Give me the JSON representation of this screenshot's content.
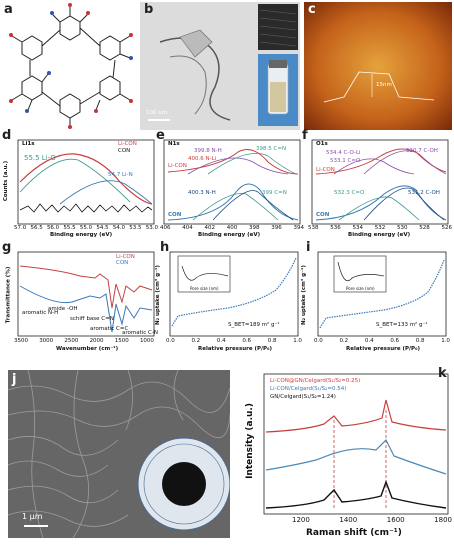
{
  "panels": {
    "a": {
      "letter": "a"
    },
    "b": {
      "letter": "b",
      "scalebar": "100 nm"
    },
    "c": {
      "letter": "c",
      "height_label": "15nm"
    },
    "d": {
      "letter": "d",
      "title": "Li1s",
      "legend": [
        "Li-CON",
        "CON"
      ],
      "peaks": [
        "55.5 Li-O",
        "54.7 Li-N"
      ],
      "xlabel": "Binding energy (eV)",
      "ylabel": "Counts (a.u.)",
      "xticks": [
        "57.0",
        "56.5",
        "56.0",
        "55.5",
        "55.0",
        "54.5",
        "54.0",
        "53.5",
        "53.0"
      ]
    },
    "e": {
      "letter": "e",
      "title": "N1s",
      "peaks": [
        "399.8 N-H",
        "398.5 C=N",
        "400.6 N-Li",
        "400.3 N-H",
        "399 C=N"
      ],
      "series_labels": [
        "Li-CON",
        "CON"
      ],
      "xlabel": "Binding energy (eV)",
      "xticks": [
        "406",
        "404",
        "402",
        "400",
        "398",
        "396",
        "394"
      ]
    },
    "f": {
      "letter": "f",
      "title": "O1s",
      "peaks": [
        "534.4 C-O-Li",
        "530.7 C-OH",
        "533.1 C=O",
        "532.3 C=O",
        "531.2 C-OH"
      ],
      "series_labels": [
        "Li-CON",
        "CON"
      ],
      "xlabel": "Binding energy (eV)",
      "xticks": [
        "538",
        "536",
        "534",
        "532",
        "530",
        "528",
        "526"
      ]
    },
    "g": {
      "letter": "g",
      "legend": [
        "Li-CON",
        "CON"
      ],
      "annotations": [
        "amide -OH",
        "aromatic N-H",
        "schiff base C=N",
        "aromatic C=C",
        "aromatic C-N"
      ],
      "xlabel": "Wavenumber (cm⁻¹)",
      "ylabel": "Transmittance (%)",
      "xticks": [
        "3500",
        "3000",
        "2500",
        "2000",
        "1500",
        "1000"
      ]
    },
    "h": {
      "letter": "h",
      "sbet": "S_BET=189 m² g⁻¹",
      "xlabel": "Relative pressure (P/P₀)",
      "ylabel": "N₂ uptake (cm³ g⁻¹)",
      "xticks": [
        "0.0",
        "0.2",
        "0.4",
        "0.6",
        "0.8",
        "1.0"
      ],
      "inset_xlabel": "Pore size (nm)"
    },
    "i": {
      "letter": "i",
      "sbet": "S_BET=133 m² g⁻¹",
      "xlabel": "Relative pressure (P/P₀)",
      "ylabel": "N₂ uptake (cm³ g⁻¹)",
      "xticks": [
        "0.0",
        "0.2",
        "0.4",
        "0.6",
        "0.8",
        "1.0"
      ],
      "inset_xlabel": "Pore size (nm)"
    },
    "j": {
      "letter": "j",
      "scalebar": "1 μm"
    },
    "k": {
      "letter": "k",
      "legend": [
        "Li-CON@GN/Celgard(S₁/S₂=0.25)",
        "Li-CON/Celgard(S₁/S₂=0.54)",
        "GN/Celgard(S₁/S₂=1.24)"
      ],
      "xlabel": "Raman shift (cm⁻¹)",
      "ylabel": "Intensity (a.u.)",
      "xticks": [
        "1200",
        "1400",
        "1600",
        "1800"
      ]
    }
  },
  "colors": {
    "red": "#c94040",
    "blue": "#3a78b5",
    "teal": "#3c9a8a",
    "purple": "#8a4fa8",
    "black": "#111111"
  }
}
